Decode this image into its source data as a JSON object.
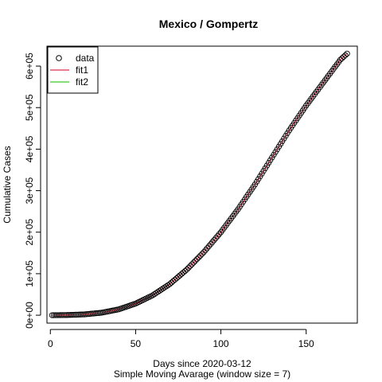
{
  "chart_data": {
    "type": "scatter",
    "title": "Mexico / Gompertz",
    "xlabel": "Days since 2020-03-12",
    "xlabel2": "Simple Moving Avarage (window size = 7)",
    "ylabel": "Cumulative Cases",
    "xlim": [
      0,
      180
    ],
    "ylim": [
      0,
      650000
    ],
    "x_ticks": [
      0,
      50,
      100,
      150
    ],
    "x_tick_labels": [
      "0",
      "50",
      "100",
      "150"
    ],
    "y_ticks": [
      0,
      100000,
      200000,
      300000,
      400000,
      500000,
      600000
    ],
    "y_tick_labels": [
      "0e+00",
      "1e+05",
      "2e+05",
      "3e+05",
      "4e+05",
      "5e+05",
      "6e+05"
    ],
    "legend_position": "top-left",
    "legend": [
      {
        "label": "data",
        "kind": "point",
        "color": "#000000"
      },
      {
        "label": "fit1",
        "kind": "line",
        "color": "#DF536B"
      },
      {
        "label": "fit2",
        "kind": "line",
        "color": "#61D04F"
      }
    ],
    "data_x": [
      1,
      174
    ],
    "data_y_anchors": [
      [
        1,
        0
      ],
      [
        10,
        500
      ],
      [
        20,
        2000
      ],
      [
        30,
        6000
      ],
      [
        40,
        14000
      ],
      [
        50,
        28000
      ],
      [
        60,
        48000
      ],
      [
        70,
        75000
      ],
      [
        80,
        110000
      ],
      [
        90,
        152000
      ],
      [
        100,
        200000
      ],
      [
        110,
        255000
      ],
      [
        120,
        315000
      ],
      [
        130,
        380000
      ],
      [
        140,
        445000
      ],
      [
        150,
        505000
      ],
      [
        160,
        560000
      ],
      [
        170,
        615000
      ],
      [
        174,
        630000
      ]
    ],
    "series": [
      {
        "name": "data",
        "color": "#000000"
      },
      {
        "name": "fit1",
        "color": "#DF536B"
      },
      {
        "name": "fit2",
        "color": "#61D04F"
      }
    ]
  }
}
